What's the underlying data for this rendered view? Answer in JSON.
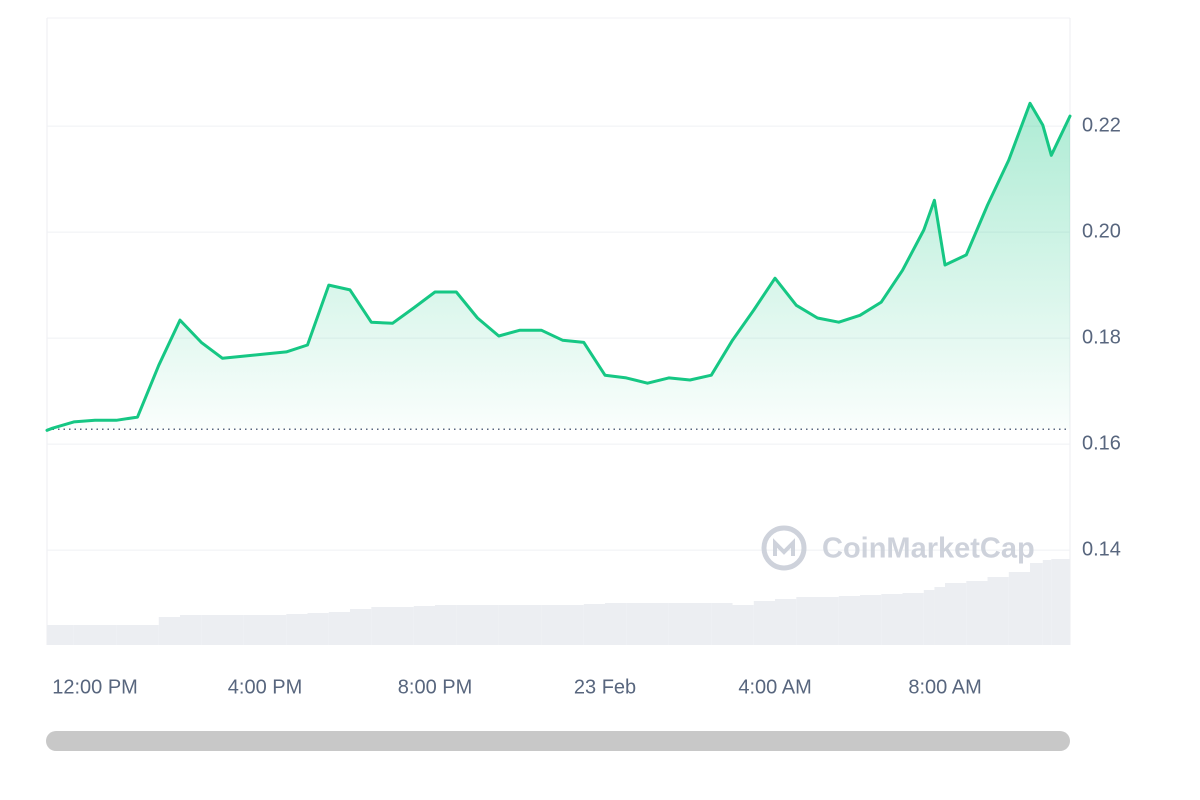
{
  "chart_data": {
    "type": "line",
    "watermark": "CoinMarketCap",
    "x": [
      10.87,
      11.0,
      11.5,
      12,
      12.5,
      13,
      13.5,
      14,
      14.5,
      15,
      15.5,
      16,
      16.5,
      17,
      17.5,
      18,
      18.5,
      19,
      19.5,
      20,
      20.5,
      21,
      21.5,
      22,
      22.5,
      23,
      23.5,
      24,
      24.5,
      25,
      25.5,
      26,
      26.5,
      27,
      27.5,
      28,
      28.5,
      29,
      29.5,
      30,
      30.5,
      31,
      31.5,
      31.75,
      32,
      32.5,
      33,
      33.5,
      34,
      34.3,
      34.5,
      34.94
    ],
    "values": [
      0.1626,
      0.163,
      0.1642,
      0.1645,
      0.1645,
      0.1651,
      0.1749,
      0.1834,
      0.1792,
      0.1762,
      0.1766,
      0.177,
      0.1774,
      0.1787,
      0.19,
      0.1891,
      0.183,
      0.1828,
      0.1857,
      0.1887,
      0.1887,
      0.1838,
      0.1804,
      0.1815,
      0.1815,
      0.1796,
      0.1792,
      0.173,
      0.1725,
      0.1715,
      0.1725,
      0.1721,
      0.173,
      0.1796,
      0.1853,
      0.1913,
      0.1862,
      0.1838,
      0.183,
      0.1843,
      0.1868,
      0.1928,
      0.2004,
      0.206,
      0.1938,
      0.1957,
      0.2051,
      0.2136,
      0.2243,
      0.2202,
      0.2145,
      0.2219
    ],
    "color": "#16c784",
    "baseline": 0.1628,
    "volume": {
      "color": "#eceef2",
      "ylim": [
        0,
        100
      ],
      "values": [
        20,
        20,
        20,
        20,
        20,
        20,
        28,
        30,
        30,
        30,
        30,
        30,
        31,
        32,
        33,
        36,
        38,
        38,
        39,
        40,
        40,
        40,
        40,
        40,
        40,
        40,
        41,
        42,
        42,
        42,
        42,
        42,
        42,
        40,
        44,
        46,
        48,
        48,
        49,
        50,
        51,
        52,
        55,
        58,
        62,
        64,
        68,
        73,
        82,
        85,
        86,
        88
      ]
    },
    "xlim": [
      10.87,
      34.94
    ],
    "xticks": [
      {
        "value": 12,
        "label": "12:00 PM"
      },
      {
        "value": 16,
        "label": "4:00 PM"
      },
      {
        "value": 20,
        "label": "8:00 PM"
      },
      {
        "value": 24,
        "label": "23 Feb"
      },
      {
        "value": 28,
        "label": "4:00 AM"
      },
      {
        "value": 32,
        "label": "8:00 AM"
      }
    ],
    "ylim": [
      0.1221,
      0.2404
    ],
    "yticks": [
      {
        "value": 0.14,
        "label": "0.14"
      },
      {
        "value": 0.16,
        "label": "0.16"
      },
      {
        "value": 0.18,
        "label": "0.18"
      },
      {
        "value": 0.2,
        "label": "0.20"
      },
      {
        "value": 0.22,
        "label": "0.22"
      }
    ],
    "grid": true
  }
}
